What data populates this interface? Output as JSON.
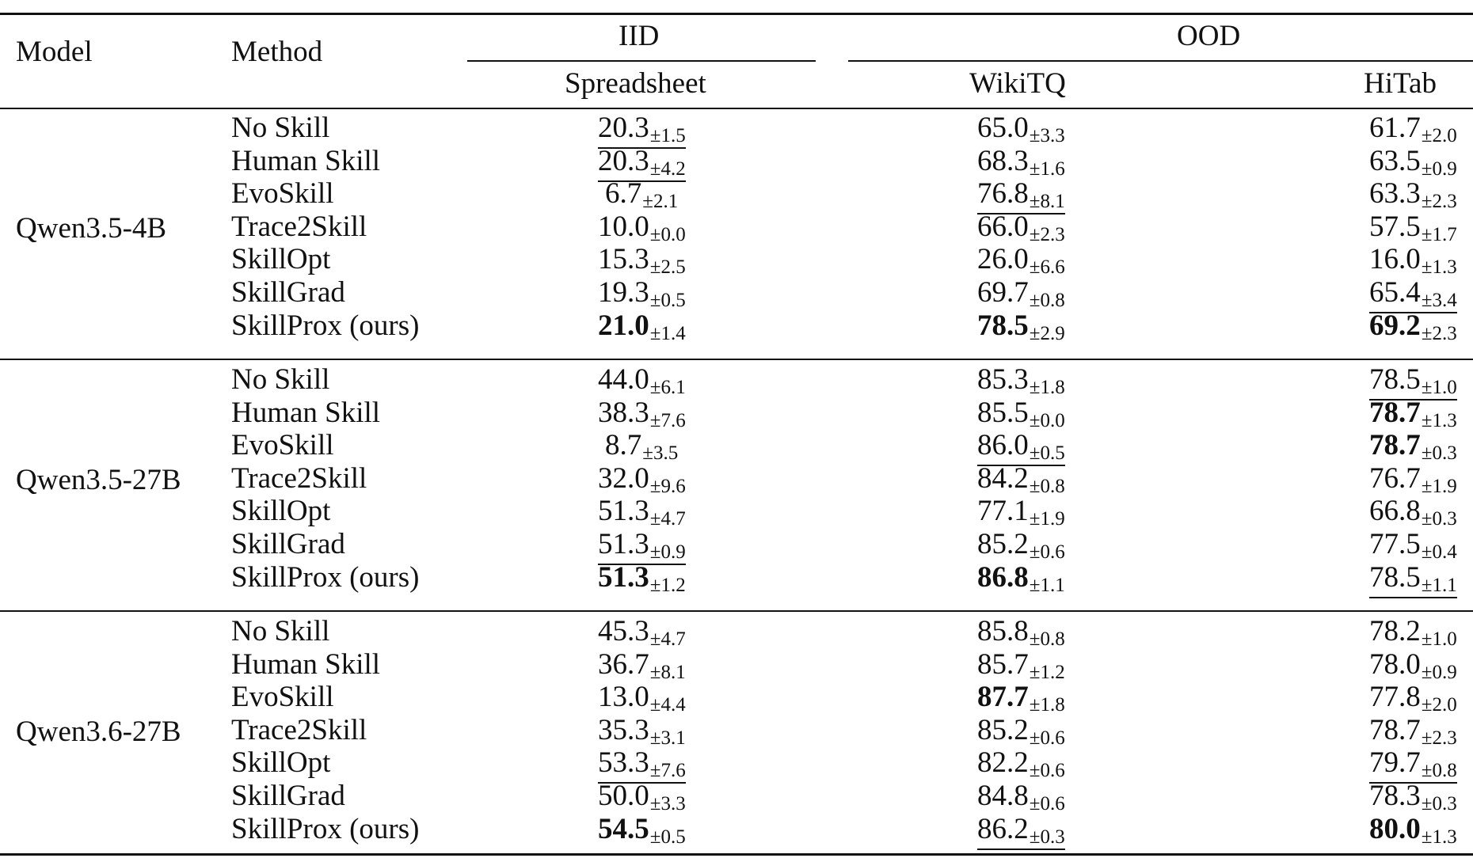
{
  "header": {
    "model": "Model",
    "method": "Method",
    "iid": "IID",
    "ood": "OOD",
    "columns": [
      "Spreadsheet",
      "WikiTQ",
      "HiTab"
    ]
  },
  "groups": [
    {
      "model": "Qwen3.5-4B",
      "rows": [
        {
          "method": "No Skill",
          "cells": [
            {
              "v": "20.3",
              "s": "±1.5",
              "b": false,
              "u": true
            },
            {
              "v": "65.0",
              "s": "±3.3",
              "b": false,
              "u": false
            },
            {
              "v": "61.7",
              "s": "±2.0",
              "b": false,
              "u": false
            }
          ]
        },
        {
          "method": "Human Skill",
          "cells": [
            {
              "v": "20.3",
              "s": "±4.2",
              "b": false,
              "u": true
            },
            {
              "v": "68.3",
              "s": "±1.6",
              "b": false,
              "u": false
            },
            {
              "v": "63.5",
              "s": "±0.9",
              "b": false,
              "u": false
            }
          ]
        },
        {
          "method": "EvoSkill",
          "cells": [
            {
              "v": "6.7",
              "s": "±2.1",
              "b": false,
              "u": false
            },
            {
              "v": "76.8",
              "s": "±8.1",
              "b": false,
              "u": true
            },
            {
              "v": "63.3",
              "s": "±2.3",
              "b": false,
              "u": false
            }
          ]
        },
        {
          "method": "Trace2Skill",
          "cells": [
            {
              "v": "10.0",
              "s": "±0.0",
              "b": false,
              "u": false
            },
            {
              "v": "66.0",
              "s": "±2.3",
              "b": false,
              "u": false
            },
            {
              "v": "57.5",
              "s": "±1.7",
              "b": false,
              "u": false
            }
          ]
        },
        {
          "method": "SkillOpt",
          "cells": [
            {
              "v": "15.3",
              "s": "±2.5",
              "b": false,
              "u": false
            },
            {
              "v": "26.0",
              "s": "±6.6",
              "b": false,
              "u": false
            },
            {
              "v": "16.0",
              "s": "±1.3",
              "b": false,
              "u": false
            }
          ]
        },
        {
          "method": "SkillGrad",
          "cells": [
            {
              "v": "19.3",
              "s": "±0.5",
              "b": false,
              "u": false
            },
            {
              "v": "69.7",
              "s": "±0.8",
              "b": false,
              "u": false
            },
            {
              "v": "65.4",
              "s": "±3.4",
              "b": false,
              "u": true
            }
          ]
        },
        {
          "method": "SkillProx (ours)",
          "cells": [
            {
              "v": "21.0",
              "s": "±1.4",
              "b": true,
              "u": false
            },
            {
              "v": "78.5",
              "s": "±2.9",
              "b": true,
              "u": false
            },
            {
              "v": "69.2",
              "s": "±2.3",
              "b": true,
              "u": false
            }
          ]
        }
      ]
    },
    {
      "model": "Qwen3.5-27B",
      "rows": [
        {
          "method": "No Skill",
          "cells": [
            {
              "v": "44.0",
              "s": "±6.1",
              "b": false,
              "u": false
            },
            {
              "v": "85.3",
              "s": "±1.8",
              "b": false,
              "u": false
            },
            {
              "v": "78.5",
              "s": "±1.0",
              "b": false,
              "u": true
            }
          ]
        },
        {
          "method": "Human Skill",
          "cells": [
            {
              "v": "38.3",
              "s": "±7.6",
              "b": false,
              "u": false
            },
            {
              "v": "85.5",
              "s": "±0.0",
              "b": false,
              "u": false
            },
            {
              "v": "78.7",
              "s": "±1.3",
              "b": true,
              "u": false
            }
          ]
        },
        {
          "method": "EvoSkill",
          "cells": [
            {
              "v": "8.7",
              "s": "±3.5",
              "b": false,
              "u": false
            },
            {
              "v": "86.0",
              "s": "±0.5",
              "b": false,
              "u": true
            },
            {
              "v": "78.7",
              "s": "±0.3",
              "b": true,
              "u": false
            }
          ]
        },
        {
          "method": "Trace2Skill",
          "cells": [
            {
              "v": "32.0",
              "s": "±9.6",
              "b": false,
              "u": false
            },
            {
              "v": "84.2",
              "s": "±0.8",
              "b": false,
              "u": false
            },
            {
              "v": "76.7",
              "s": "±1.9",
              "b": false,
              "u": false
            }
          ]
        },
        {
          "method": "SkillOpt",
          "cells": [
            {
              "v": "51.3",
              "s": "±4.7",
              "b": false,
              "u": false
            },
            {
              "v": "77.1",
              "s": "±1.9",
              "b": false,
              "u": false
            },
            {
              "v": "66.8",
              "s": "±0.3",
              "b": false,
              "u": false
            }
          ]
        },
        {
          "method": "SkillGrad",
          "cells": [
            {
              "v": "51.3",
              "s": "±0.9",
              "b": false,
              "u": true
            },
            {
              "v": "85.2",
              "s": "±0.6",
              "b": false,
              "u": false
            },
            {
              "v": "77.5",
              "s": "±0.4",
              "b": false,
              "u": false
            }
          ]
        },
        {
          "method": "SkillProx (ours)",
          "cells": [
            {
              "v": "51.3",
              "s": "±1.2",
              "b": true,
              "u": false
            },
            {
              "v": "86.8",
              "s": "±1.1",
              "b": true,
              "u": false
            },
            {
              "v": "78.5",
              "s": "±1.1",
              "b": false,
              "u": true
            }
          ]
        }
      ]
    },
    {
      "model": "Qwen3.6-27B",
      "rows": [
        {
          "method": "No Skill",
          "cells": [
            {
              "v": "45.3",
              "s": "±4.7",
              "b": false,
              "u": false
            },
            {
              "v": "85.8",
              "s": "±0.8",
              "b": false,
              "u": false
            },
            {
              "v": "78.2",
              "s": "±1.0",
              "b": false,
              "u": false
            }
          ]
        },
        {
          "method": "Human Skill",
          "cells": [
            {
              "v": "36.7",
              "s": "±8.1",
              "b": false,
              "u": false
            },
            {
              "v": "85.7",
              "s": "±1.2",
              "b": false,
              "u": false
            },
            {
              "v": "78.0",
              "s": "±0.9",
              "b": false,
              "u": false
            }
          ]
        },
        {
          "method": "EvoSkill",
          "cells": [
            {
              "v": "13.0",
              "s": "±4.4",
              "b": false,
              "u": false
            },
            {
              "v": "87.7",
              "s": "±1.8",
              "b": true,
              "u": false
            },
            {
              "v": "77.8",
              "s": "±2.0",
              "b": false,
              "u": false
            }
          ]
        },
        {
          "method": "Trace2Skill",
          "cells": [
            {
              "v": "35.3",
              "s": "±3.1",
              "b": false,
              "u": false
            },
            {
              "v": "85.2",
              "s": "±0.6",
              "b": false,
              "u": false
            },
            {
              "v": "78.7",
              "s": "±2.3",
              "b": false,
              "u": false
            }
          ]
        },
        {
          "method": "SkillOpt",
          "cells": [
            {
              "v": "53.3",
              "s": "±7.6",
              "b": false,
              "u": true
            },
            {
              "v": "82.2",
              "s": "±0.6",
              "b": false,
              "u": false
            },
            {
              "v": "79.7",
              "s": "±0.8",
              "b": false,
              "u": true
            }
          ]
        },
        {
          "method": "SkillGrad",
          "cells": [
            {
              "v": "50.0",
              "s": "±3.3",
              "b": false,
              "u": false
            },
            {
              "v": "84.8",
              "s": "±0.6",
              "b": false,
              "u": false
            },
            {
              "v": "78.3",
              "s": "±0.3",
              "b": false,
              "u": false
            }
          ]
        },
        {
          "method": "SkillProx (ours)",
          "cells": [
            {
              "v": "54.5",
              "s": "±0.5",
              "b": true,
              "u": false
            },
            {
              "v": "86.2",
              "s": "±0.3",
              "b": false,
              "u": true
            },
            {
              "v": "80.0",
              "s": "±1.3",
              "b": true,
              "u": false
            }
          ]
        }
      ]
    }
  ]
}
